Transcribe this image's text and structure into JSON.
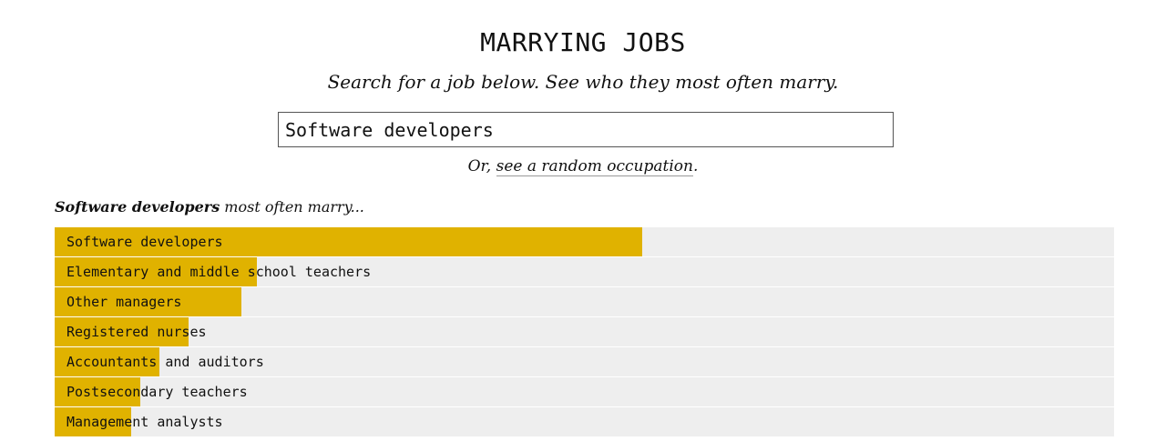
{
  "header": {
    "title": "MARRYING JOBS",
    "subtitle": "Search for a job below. See who they most often marry."
  },
  "search": {
    "value": "Software developers"
  },
  "random": {
    "prefix": "Or, ",
    "link_label": "see a random occupation",
    "suffix": "."
  },
  "results": {
    "job": "Software developers",
    "heading_suffix": " most often marry..."
  },
  "colors": {
    "bar_fill": "#e0b200",
    "bar_track": "#eeeeee"
  },
  "chart_data": {
    "type": "bar",
    "orientation": "horizontal",
    "categories": [
      "Software developers",
      "Elementary and middle school teachers",
      "Other managers",
      "Registered nurses",
      "Accountants and auditors",
      "Postsecondary teachers",
      "Management analysts"
    ],
    "values": [
      1.0,
      0.344,
      0.318,
      0.228,
      0.179,
      0.146,
      0.131
    ]
  }
}
